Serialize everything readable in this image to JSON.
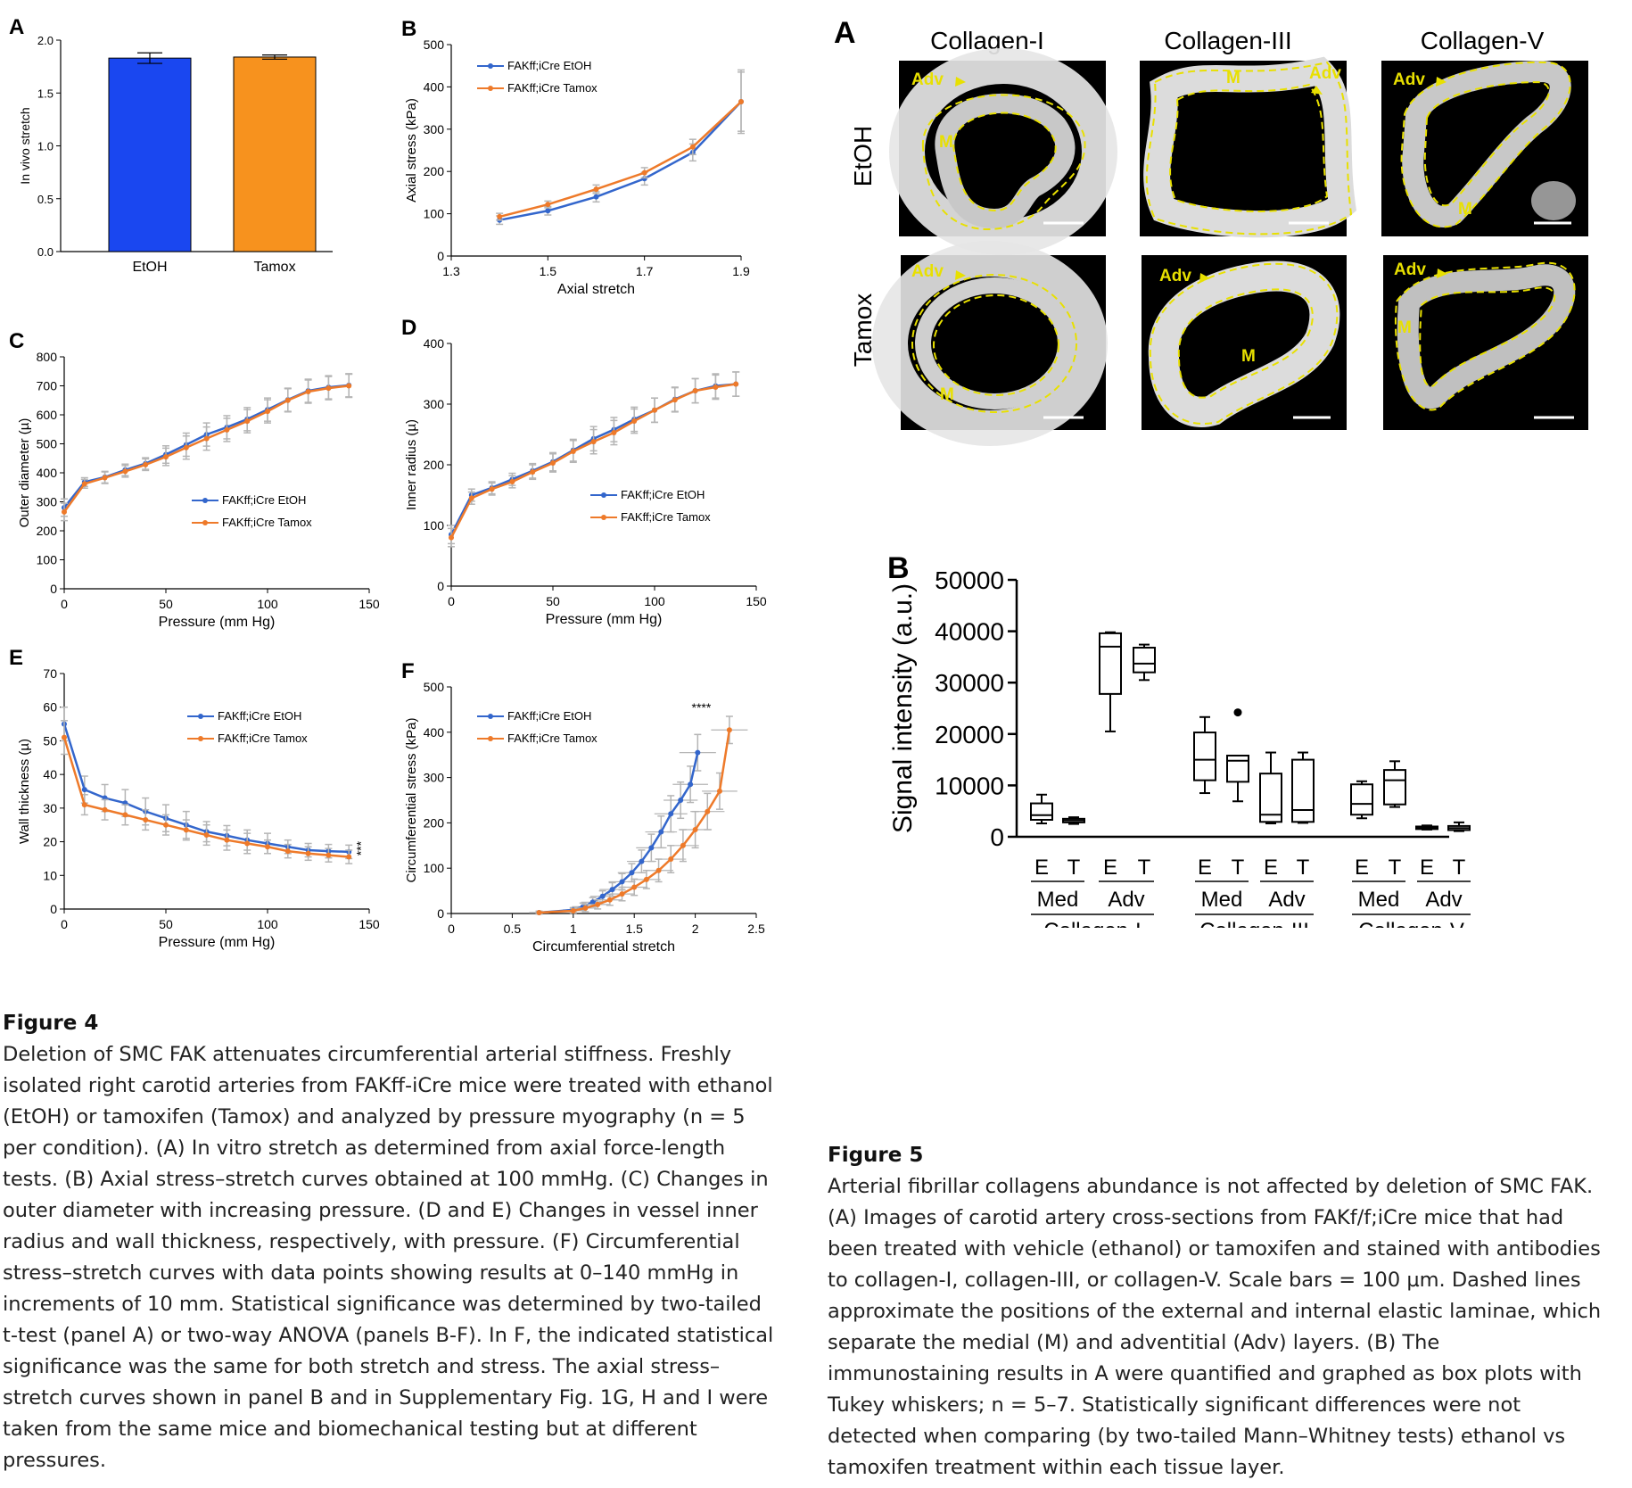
{
  "colors": {
    "etoh": "#3366cc",
    "tamox": "#ee7a2a",
    "bar_etoh": "#1a47f0",
    "bar_tamox": "#f7921e",
    "grey_err": "#b5b5b5",
    "dash": "#e8e000"
  },
  "legend": {
    "etoh": "FAKff;iCre EtOH",
    "tamox": "FAKff;iCre Tamox"
  },
  "chart_data": [
    {
      "id": "fig4A",
      "type": "bar",
      "panel": "A",
      "categories": [
        "EtOH",
        "Tamox"
      ],
      "values": [
        1.83,
        1.84
      ],
      "errors": [
        0.05,
        0.02
      ],
      "ylabel": "In vivo stretch",
      "ylim": [
        0,
        2.0
      ],
      "yticks": [
        "0.0",
        "0.5",
        "1.0",
        "1.5",
        "2.0"
      ]
    },
    {
      "id": "fig4B",
      "type": "line",
      "panel": "B",
      "xlabel": "Axial stretch",
      "ylabel": "Axial stress (kPa)",
      "xlim": [
        1.3,
        1.9
      ],
      "ylim": [
        0,
        500
      ],
      "xticks": [
        "1.3",
        "1.5",
        "1.7",
        "1.9"
      ],
      "yticks": [
        "0",
        "100",
        "200",
        "300",
        "400",
        "500"
      ],
      "x": [
        1.4,
        1.5,
        1.6,
        1.7,
        1.8,
        1.9
      ],
      "series": [
        {
          "name": "FAKff;iCre EtOH",
          "values": [
            85,
            107,
            140,
            183,
            245,
            365
          ],
          "errors": [
            10,
            10,
            12,
            15,
            20,
            75
          ]
        },
        {
          "name": "FAKff;iCre Tamox",
          "values": [
            93,
            122,
            158,
            197,
            258,
            365
          ],
          "errors": [
            8,
            8,
            10,
            12,
            18,
            70
          ]
        }
      ]
    },
    {
      "id": "fig4C",
      "type": "line",
      "panel": "C",
      "xlabel": "Pressure (mm Hg)",
      "ylabel": "Outer diameter (µ)",
      "xlim": [
        0,
        150
      ],
      "ylim": [
        0,
        800
      ],
      "xticks": [
        "0",
        "50",
        "100",
        "150"
      ],
      "yticks": [
        "0",
        "100",
        "200",
        "300",
        "400",
        "500",
        "600",
        "700",
        "800"
      ],
      "x": [
        0,
        10,
        20,
        30,
        40,
        50,
        60,
        70,
        80,
        90,
        100,
        110,
        120,
        130,
        140
      ],
      "series": [
        {
          "name": "FAKff;iCre EtOH",
          "values": [
            280,
            368,
            385,
            410,
            432,
            463,
            497,
            532,
            557,
            585,
            618,
            652,
            683,
            695,
            702
          ],
          "errors": [
            30,
            15,
            20,
            20,
            20,
            30,
            40,
            40,
            40,
            40,
            40,
            40,
            40,
            40,
            40
          ]
        },
        {
          "name": "FAKff;iCre Tamox",
          "values": [
            265,
            362,
            383,
            405,
            428,
            455,
            487,
            518,
            548,
            578,
            612,
            650,
            680,
            692,
            700
          ],
          "errors": [
            30,
            15,
            20,
            20,
            20,
            30,
            40,
            40,
            40,
            40,
            40,
            40,
            40,
            40,
            40
          ]
        }
      ]
    },
    {
      "id": "fig4D",
      "type": "line",
      "panel": "D",
      "xlabel": "Pressure (mm Hg)",
      "ylabel": "Inner radius (µ)",
      "xlim": [
        0,
        150
      ],
      "ylim": [
        0,
        400
      ],
      "xticks": [
        "0",
        "50",
        "100",
        "150"
      ],
      "yticks": [
        "0",
        "100",
        "200",
        "300",
        "400"
      ],
      "x": [
        0,
        10,
        20,
        30,
        40,
        50,
        60,
        70,
        80,
        90,
        100,
        110,
        120,
        130,
        140
      ],
      "series": [
        {
          "name": "FAKff;iCre EtOH",
          "values": [
            85,
            150,
            162,
            176,
            190,
            205,
            224,
            243,
            258,
            275,
            290,
            308,
            322,
            330,
            333
          ],
          "errors": [
            15,
            10,
            10,
            10,
            12,
            15,
            18,
            20,
            20,
            20,
            20,
            20,
            20,
            20,
            20
          ]
        },
        {
          "name": "FAKff;iCre Tamox",
          "values": [
            80,
            145,
            160,
            172,
            188,
            203,
            222,
            238,
            253,
            272,
            290,
            307,
            322,
            328,
            333
          ],
          "errors": [
            15,
            10,
            10,
            10,
            12,
            15,
            18,
            20,
            20,
            20,
            20,
            20,
            20,
            20,
            20
          ]
        }
      ]
    },
    {
      "id": "fig4E",
      "type": "line",
      "panel": "E",
      "xlabel": "Pressure (mm Hg)",
      "ylabel": "Wall thickness (µ)",
      "xlim": [
        0,
        150
      ],
      "ylim": [
        0,
        70
      ],
      "xticks": [
        "0",
        "50",
        "100",
        "150"
      ],
      "yticks": [
        "0",
        "10",
        "20",
        "30",
        "40",
        "50",
        "60",
        "70"
      ],
      "x": [
        0,
        10,
        20,
        30,
        40,
        50,
        60,
        70,
        80,
        90,
        100,
        110,
        120,
        130,
        140
      ],
      "annotation": "***",
      "series": [
        {
          "name": "FAKff;iCre EtOH",
          "values": [
            55,
            35.5,
            33,
            31.5,
            29,
            27,
            25,
            23,
            21.8,
            20.5,
            19.5,
            18.5,
            17.5,
            17.2,
            17
          ],
          "errors": [
            5,
            4,
            4,
            4,
            4,
            4,
            4,
            3,
            3,
            3,
            3,
            2,
            2,
            2,
            2
          ]
        },
        {
          "name": "FAKff;iCre Tamox",
          "values": [
            51,
            31,
            29.5,
            28,
            26.5,
            25,
            23.5,
            22,
            20.5,
            19.5,
            18.5,
            17.2,
            16.5,
            16,
            15.5
          ],
          "errors": [
            5,
            3,
            3,
            3,
            3,
            3,
            3,
            3,
            3,
            3,
            2,
            2,
            2,
            2,
            2
          ]
        }
      ]
    },
    {
      "id": "fig4F",
      "type": "line",
      "panel": "F",
      "xlabel": "Circumferential stretch",
      "ylabel": "Circumferential stress (kPa)",
      "xlim": [
        0,
        2.5
      ],
      "ylim": [
        0,
        500
      ],
      "xticks": [
        "0",
        "0.5",
        "1",
        "1.5",
        "2",
        "2.5"
      ],
      "yticks": [
        "0",
        "100",
        "200",
        "300",
        "400",
        "500"
      ],
      "annotation": "****",
      "series": [
        {
          "name": "FAKff;iCre EtOH",
          "x": [
            0.72,
            1.0,
            1.08,
            1.16,
            1.24,
            1.32,
            1.4,
            1.48,
            1.56,
            1.64,
            1.72,
            1.8,
            1.88,
            1.96,
            2.02
          ],
          "values": [
            2,
            8,
            15,
            25,
            38,
            53,
            70,
            90,
            115,
            145,
            180,
            220,
            250,
            285,
            355
          ],
          "errors": [
            3,
            5,
            8,
            10,
            12,
            15,
            18,
            20,
            25,
            30,
            35,
            40,
            40,
            40,
            40
          ]
        },
        {
          "name": "FAKff;iCre Tamox",
          "x": [
            0.72,
            1.0,
            1.1,
            1.2,
            1.3,
            1.4,
            1.5,
            1.6,
            1.7,
            1.8,
            1.9,
            2.0,
            2.1,
            2.2,
            2.28
          ],
          "values": [
            2,
            6,
            12,
            20,
            30,
            43,
            58,
            75,
            95,
            120,
            150,
            185,
            225,
            270,
            405
          ],
          "errors": [
            3,
            5,
            8,
            10,
            12,
            15,
            18,
            20,
            25,
            30,
            35,
            40,
            40,
            40,
            30
          ]
        }
      ]
    },
    {
      "id": "fig5B",
      "type": "box",
      "panel": "B",
      "ylabel": "Signal intensity (a.u.)",
      "ylim": [
        0,
        50000
      ],
      "yticks": [
        "0",
        "10000",
        "20000",
        "30000",
        "40000",
        "50000"
      ],
      "boxes": [
        {
          "group": "Collagen-I",
          "layer": "Med",
          "label": "E",
          "min": 2600,
          "q1": 3300,
          "median": 4200,
          "q3": 6500,
          "max": 8200
        },
        {
          "group": "Collagen-I",
          "layer": "Med",
          "label": "T",
          "min": 2500,
          "q1": 2800,
          "median": 3200,
          "q3": 3500,
          "max": 3800
        },
        {
          "group": "Collagen-I",
          "layer": "Adv",
          "label": "E",
          "min": 20500,
          "q1": 27800,
          "median": 37000,
          "q3": 39600,
          "max": 39800
        },
        {
          "group": "Collagen-I",
          "layer": "Adv",
          "label": "T",
          "min": 30500,
          "q1": 32000,
          "median": 33700,
          "q3": 36800,
          "max": 37400
        },
        {
          "group": "Collagen-III",
          "layer": "Med",
          "label": "E",
          "min": 8500,
          "q1": 11000,
          "median": 15000,
          "q3": 20300,
          "max": 23300
        },
        {
          "group": "Collagen-III",
          "layer": "Med",
          "label": "T",
          "min": 6900,
          "q1": 10700,
          "median": 14800,
          "q3": 15800,
          "max": 15800,
          "outliers": [
            24200
          ]
        },
        {
          "group": "Collagen-III",
          "layer": "Adv",
          "label": "E",
          "min": 2600,
          "q1": 2900,
          "median": 4300,
          "q3": 12300,
          "max": 16400
        },
        {
          "group": "Collagen-III",
          "layer": "Adv",
          "label": "T",
          "min": 2700,
          "q1": 2900,
          "median": 5200,
          "q3": 15000,
          "max": 16400
        },
        {
          "group": "Collagen-V",
          "layer": "Med",
          "label": "E",
          "min": 3600,
          "q1": 4300,
          "median": 6400,
          "q3": 10200,
          "max": 10800
        },
        {
          "group": "Collagen-V",
          "layer": "Med",
          "label": "T",
          "min": 5800,
          "q1": 6300,
          "median": 11000,
          "q3": 13000,
          "max": 14700
        },
        {
          "group": "Collagen-V",
          "layer": "Adv",
          "label": "E",
          "min": 1400,
          "q1": 1500,
          "median": 1800,
          "q3": 2000,
          "max": 2200
        },
        {
          "group": "Collagen-V",
          "layer": "Adv",
          "label": "T",
          "min": 1100,
          "q1": 1300,
          "median": 1700,
          "q3": 2100,
          "max": 2800
        }
      ],
      "layer_labels": [
        "Med",
        "Adv",
        "Med",
        "Adv",
        "Med",
        "Adv"
      ],
      "group_labels": [
        "Collagen-I",
        "Collagen-III",
        "Collagen-V"
      ]
    }
  ],
  "panel_letters": {
    "A4": "A",
    "B4": "B",
    "C4": "C",
    "D4": "D",
    "E4": "E",
    "F4": "F",
    "A5": "A",
    "B5": "B"
  },
  "micro": {
    "col_headers": [
      "Collagen-I",
      "Collagen-III",
      "Collagen-V"
    ],
    "row_headers": [
      "EtOH",
      "Tamox"
    ],
    "adv": "Adv",
    "m": "M"
  },
  "figure4": {
    "title": "Figure 4",
    "text": "Deletion of SMC FAK attenuates circumferential arterial stiffness. Freshly isolated right carotid arteries from FAKff-iCre mice were treated with ethanol (EtOH) or tamoxifen (Tamox) and analyzed by pressure myography (n  = 5 per condition). (A) In vitro stretch as determined from axial force-length tests. (B) Axial stress–stretch curves obtained at 100 mmHg. (C) Changes in outer diameter with increasing pressure. (D and E) Changes in vessel inner radius and wall thickness, respectively, with pressure. (F) Circumferential stress–stretch curves with data points showing results at 0–140 mmHg in increments of 10 mm. Statistical significance was determined by two-tailed t-test (panel A) or two-way ANOVA (panels B-F). In F, the indicated statistical significance was the same for both stretch and stress. The axial stress–stretch curves shown in panel B and in Supplementary Fig. 1G, H and I were taken from the same mice and biomechanical testing but at different pressures."
  },
  "figure5": {
    "title": "Figure 5",
    "text": "Arterial fibrillar collagens abundance is not affected by deletion of SMC FAK. (A) Images of carotid artery cross-sections from FAKf/f;iCre mice that had been treated with vehicle (ethanol) or tamoxifen and stained with antibodies to collagen-I, collagen-III, or collagen-V. Scale bars = 100 µm. Dashed lines approximate the positions of the external and internal elastic laminae, which separate the medial (M) and adventitial (Adv) layers. (B) The immunostaining results in A were quantified and graphed as box plots with Tukey whiskers; n = 5–7. Statistically significant differences were not detected when comparing (by two-tailed Mann–Whitney tests) ethanol vs tamoxifen treatment within each tissue layer."
  }
}
